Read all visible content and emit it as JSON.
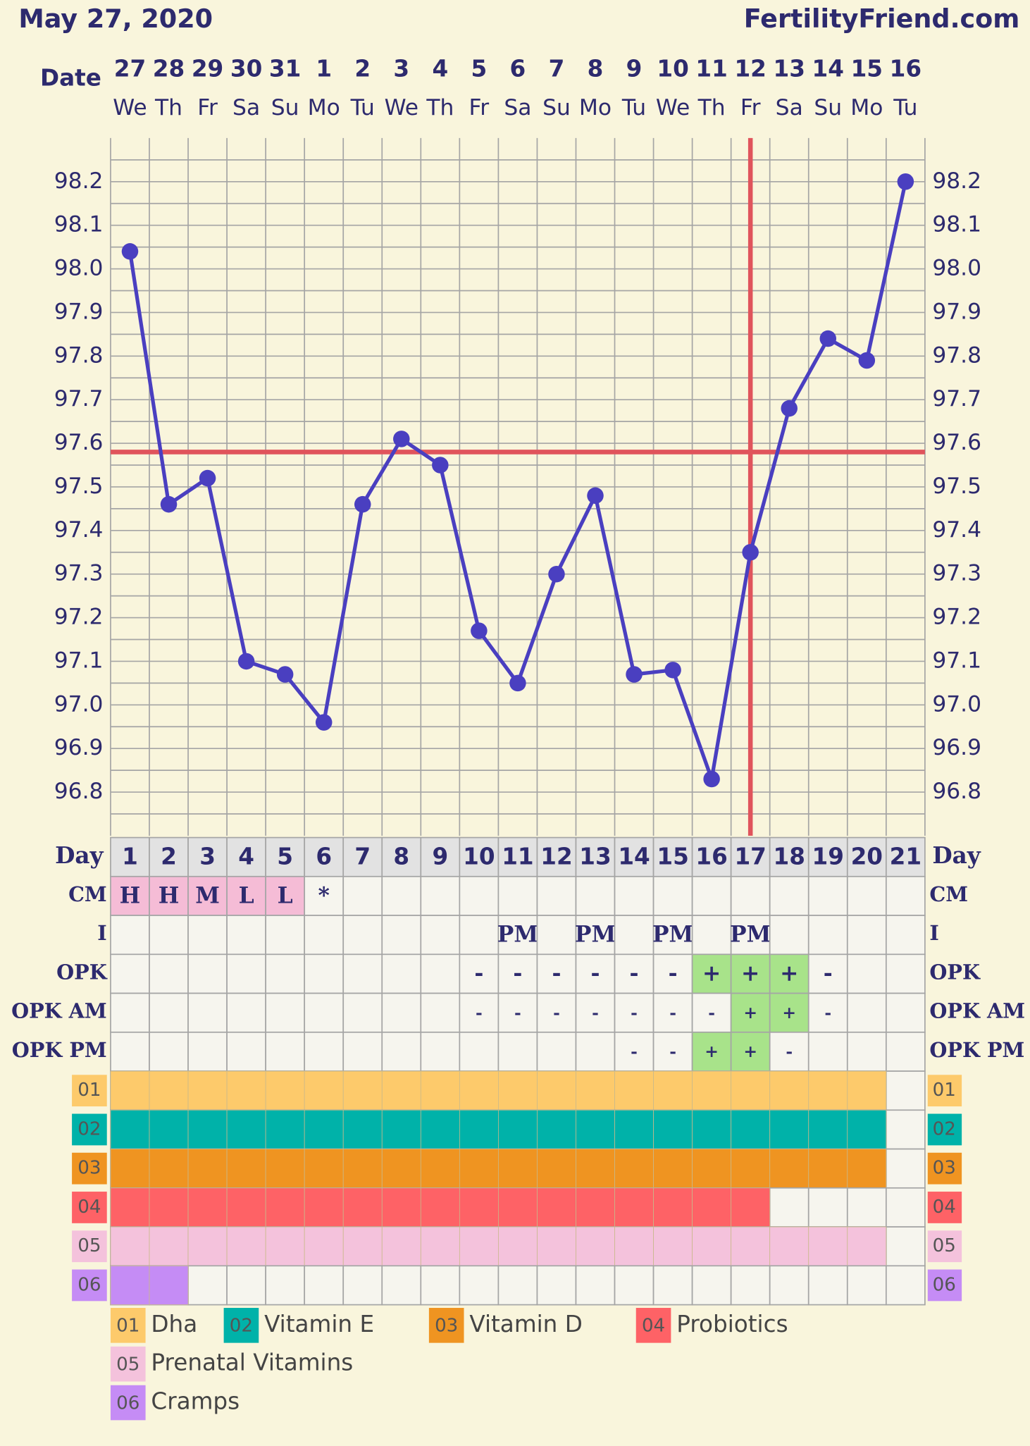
{
  "header": {
    "date": "May 27, 2020",
    "site": "FertilityFriend.com"
  },
  "chart_data": {
    "type": "line",
    "x_label": "Date",
    "dates": [
      "27",
      "28",
      "29",
      "30",
      "31",
      "1",
      "2",
      "3",
      "4",
      "5",
      "6",
      "7",
      "8",
      "9",
      "10",
      "11",
      "12",
      "13",
      "14",
      "15",
      "16"
    ],
    "weekdays": [
      "We",
      "Th",
      "Fr",
      "Sa",
      "Su",
      "Mo",
      "Tu",
      "We",
      "Th",
      "Fr",
      "Sa",
      "Su",
      "Mo",
      "Tu",
      "We",
      "Th",
      "Fr",
      "Sa",
      "Su",
      "Mo",
      "Tu"
    ],
    "day_label": "Day",
    "categories": [
      "1",
      "2",
      "3",
      "4",
      "5",
      "6",
      "7",
      "8",
      "9",
      "10",
      "11",
      "12",
      "13",
      "14",
      "15",
      "16",
      "17",
      "18",
      "19",
      "20",
      "21"
    ],
    "series": [
      {
        "color": "#4a3fc0",
        "values": [
          98.04,
          97.46,
          97.52,
          97.1,
          97.07,
          96.96,
          97.46,
          97.61,
          97.55,
          97.17,
          97.05,
          97.3,
          97.48,
          97.07,
          97.08,
          96.83,
          97.35,
          97.68,
          97.84,
          97.79,
          98.2
        ]
      }
    ],
    "ylim": [
      96.7,
      98.3
    ],
    "yticks": [
      96.8,
      96.9,
      {
        "value": 97,
        "label": "97.0"
      },
      97.1,
      97.2,
      97.3,
      97.4,
      97.5,
      97.6,
      97.7,
      97.8,
      97.9,
      {
        "value": 98,
        "label": "98.0"
      },
      98.1,
      98.2
    ],
    "minor_yticks": [
      96.75,
      96.85,
      96.95,
      97.05,
      97.15,
      97.25,
      97.35,
      97.45,
      97.55,
      97.65,
      97.75,
      97.85,
      97.95,
      98.05,
      98.15,
      98.25
    ],
    "grid": true,
    "coverline": 97.58,
    "marker_line_color": "#e0545c",
    "ovulation_day": "17"
  },
  "rows": [
    {
      "label": "CM",
      "cells": [
        "H",
        "H",
        "M",
        "L",
        "L",
        "*",
        null,
        null,
        null,
        null,
        null,
        null,
        null,
        null,
        null,
        null,
        null,
        null,
        null,
        null,
        null
      ],
      "cell_colors": [
        "#f5bcd6",
        "#f5bcd6",
        "#f5bcd6",
        "#f5bcd6",
        "#f5bcd6",
        null,
        null,
        null,
        null,
        null,
        null,
        null,
        null,
        null,
        null,
        null,
        null,
        null,
        null,
        null,
        null
      ]
    },
    {
      "label": "I",
      "cells": [
        null,
        null,
        null,
        null,
        null,
        null,
        null,
        null,
        null,
        null,
        "PM",
        null,
        "PM",
        null,
        "PM",
        null,
        "PM",
        null,
        null,
        null,
        null
      ],
      "cell_colors": [
        null,
        null,
        null,
        null,
        null,
        null,
        null,
        null,
        null,
        null,
        null,
        null,
        null,
        null,
        null,
        null,
        null,
        null,
        null,
        null,
        null
      ]
    },
    {
      "label": "OPK",
      "cells": [
        null,
        null,
        null,
        null,
        null,
        null,
        null,
        null,
        null,
        "-",
        "-",
        "-",
        "-",
        "-",
        "-",
        "+",
        "+",
        "+",
        "-",
        null,
        null
      ],
      "cell_colors": [
        null,
        null,
        null,
        null,
        null,
        null,
        null,
        null,
        null,
        null,
        null,
        null,
        null,
        null,
        null,
        "#a8e38a",
        "#a8e38a",
        "#a8e38a",
        null,
        null,
        null
      ]
    },
    {
      "label": "OPK AM",
      "cells": [
        null,
        null,
        null,
        null,
        null,
        null,
        null,
        null,
        null,
        "-",
        "-",
        "-",
        "-",
        "-",
        "-",
        "-",
        "+",
        "+",
        "-",
        null,
        null
      ],
      "cell_colors": [
        null,
        null,
        null,
        null,
        null,
        null,
        null,
        null,
        null,
        null,
        null,
        null,
        null,
        null,
        null,
        null,
        "#a8e38a",
        "#a8e38a",
        null,
        null,
        null
      ]
    },
    {
      "label": "OPK PM",
      "cells": [
        null,
        null,
        null,
        null,
        null,
        null,
        null,
        null,
        null,
        null,
        null,
        null,
        null,
        "-",
        "-",
        "+",
        "+",
        "-",
        null,
        null,
        null
      ],
      "cell_colors": [
        null,
        null,
        null,
        null,
        null,
        null,
        null,
        null,
        null,
        null,
        null,
        null,
        null,
        null,
        null,
        "#a8e38a",
        "#a8e38a",
        null,
        null,
        null,
        null
      ]
    }
  ],
  "supplements": [
    {
      "code": "01",
      "name": "Dha",
      "color": "#fdca6b",
      "start": 1,
      "end": 20
    },
    {
      "code": "02",
      "name": "Vitamin E",
      "color": "#00b2a9",
      "start": 1,
      "end": 20
    },
    {
      "code": "03",
      "name": "Vitamin D",
      "color": "#ef9421",
      "start": 1,
      "end": 20
    },
    {
      "code": "04",
      "name": "Probiotics",
      "color": "#fe6266",
      "start": 1,
      "end": 17
    },
    {
      "code": "05",
      "name": "Prenatal Vitamins",
      "color": "#f4c2dc",
      "start": 1,
      "end": 20
    },
    {
      "code": "06",
      "name": "Cramps",
      "color": "#c58cf5",
      "start": 1,
      "end": 2
    }
  ]
}
